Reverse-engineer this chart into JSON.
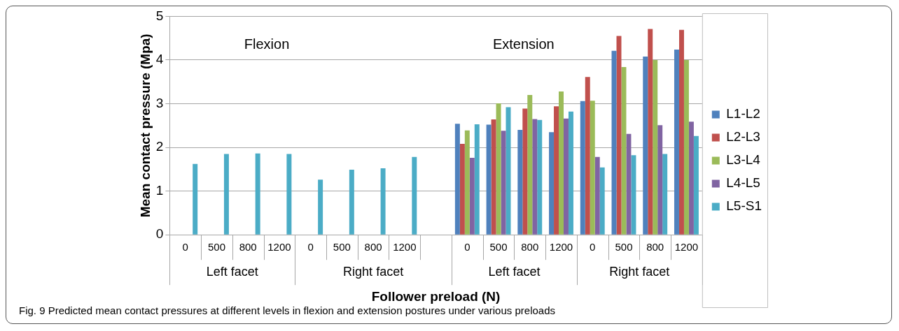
{
  "chart_data": {
    "type": "bar",
    "xlabel": "Follower preload (N)",
    "ylabel": "Mean contact pressure (Mpa)",
    "categories": [
      "0",
      "500",
      "800",
      "1200",
      "0",
      "500",
      "800",
      "1200",
      null,
      "0",
      "500",
      "800",
      "1200",
      "0",
      "500",
      "800",
      "1200"
    ],
    "series": [
      {
        "name": "L1-L2",
        "color": "#4f81bd",
        "values": [
          null,
          null,
          null,
          null,
          null,
          null,
          null,
          null,
          null,
          2.54,
          2.52,
          2.4,
          2.35,
          3.06,
          4.21,
          4.08,
          4.24
        ]
      },
      {
        "name": "L2-L3",
        "color": "#c0504d",
        "values": [
          null,
          null,
          null,
          null,
          null,
          null,
          null,
          null,
          null,
          2.08,
          2.64,
          2.89,
          2.94,
          3.61,
          4.55,
          4.71,
          4.69
        ]
      },
      {
        "name": "L3-L4",
        "color": "#9bbb59",
        "values": [
          null,
          null,
          null,
          null,
          null,
          null,
          null,
          null,
          null,
          2.39,
          3.01,
          3.2,
          3.28,
          3.07,
          3.84,
          4.0,
          4.0
        ]
      },
      {
        "name": "L4-L5",
        "color": "#8064a2",
        "values": [
          null,
          null,
          null,
          null,
          null,
          null,
          null,
          null,
          null,
          1.76,
          2.38,
          2.65,
          2.66,
          1.78,
          2.31,
          2.51,
          2.59
        ]
      },
      {
        "name": "L5-S1",
        "color": "#4bacc6",
        "values": [
          1.62,
          1.85,
          1.86,
          1.85,
          1.26,
          1.49,
          1.52,
          1.78,
          null,
          2.53,
          2.92,
          2.63,
          2.82,
          1.54,
          1.82,
          1.85,
          2.26
        ]
      }
    ],
    "ylim": [
      0,
      5
    ],
    "yticks": [
      0,
      1,
      2,
      3,
      4,
      5
    ],
    "grid": "y",
    "legend": "right",
    "annotations": [
      "Flexion",
      "Extension",
      "Left facet",
      "Right facet",
      "Left facet",
      "Right facet",
      "Fig. 9 Predicted mean contact pressures at different levels in flexion and extension postures under various preloads"
    ]
  }
}
